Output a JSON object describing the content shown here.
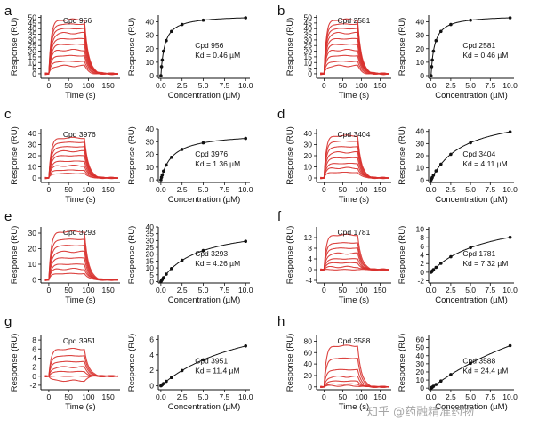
{
  "chart_data": [
    {
      "panel": "a",
      "compound": "Cpd 956",
      "kd_text": "Kd = 0.46 µM",
      "kd": 0.46,
      "rmax": 45,
      "sensorgram": {
        "type": "line",
        "xlabel": "Time (s)",
        "ylabel": "Response (RU)",
        "xlim": [
          -20,
          180
        ],
        "ylim": [
          -4,
          52
        ],
        "xticks": [
          0,
          50,
          100,
          150
        ],
        "yticks": [
          0,
          5,
          10,
          15,
          20,
          25,
          30,
          35,
          40,
          45,
          50
        ],
        "max_levels": [
          48,
          44,
          40,
          36,
          31,
          26,
          21,
          16,
          11,
          7
        ]
      },
      "affinity": {
        "type": "scatter",
        "xlabel": "Concentration (µM)",
        "ylabel": "Response (RU)",
        "xlim": [
          -0.3,
          10.5
        ],
        "ylim": [
          -2,
          45
        ],
        "xticks": [
          0.0,
          2.5,
          5.0,
          7.5,
          10.0
        ],
        "yticks": [
          0,
          10,
          20,
          30,
          40
        ]
      }
    },
    {
      "panel": "b",
      "compound": "Cpd 2581",
      "kd_text": "Kd = 0.46 µM",
      "kd": 0.46,
      "rmax": 45,
      "sensorgram": {
        "type": "line",
        "xlabel": "Time (s)",
        "ylabel": "Response (RU)",
        "xlim": [
          -20,
          180
        ],
        "ylim": [
          -4,
          52
        ],
        "xticks": [
          0,
          50,
          100,
          150
        ],
        "yticks": [
          0,
          5,
          10,
          15,
          20,
          25,
          30,
          35,
          40,
          45,
          50
        ],
        "max_levels": [
          48,
          44,
          40,
          36,
          31,
          26,
          21,
          16,
          11,
          7
        ]
      },
      "affinity": {
        "type": "scatter",
        "xlabel": "Concentration (µM)",
        "ylabel": "Response (RU)",
        "xlim": [
          -0.3,
          10.5
        ],
        "ylim": [
          -2,
          45
        ],
        "xticks": [
          0.0,
          2.5,
          5.0,
          7.5,
          10.0
        ],
        "yticks": [
          0,
          10,
          20,
          30,
          40
        ]
      }
    },
    {
      "panel": "c",
      "compound": "Cpd 3976",
      "kd_text": "Kd = 1.36 µM",
      "kd": 1.36,
      "rmax": 37,
      "sensorgram": {
        "type": "line",
        "xlabel": "Time (s)",
        "ylabel": "Response (RU)",
        "xlim": [
          -20,
          180
        ],
        "ylim": [
          -4,
          44
        ],
        "xticks": [
          0,
          50,
          100,
          150
        ],
        "yticks": [
          0,
          10,
          20,
          30,
          40
        ],
        "max_levels": [
          36,
          32,
          28,
          24,
          20,
          15,
          11,
          7,
          4
        ]
      },
      "affinity": {
        "type": "scatter",
        "xlabel": "Concentration (µM)",
        "ylabel": "Response (RU)",
        "xlim": [
          -0.3,
          10.5
        ],
        "ylim": [
          -2,
          40
        ],
        "xticks": [
          0.0,
          2.5,
          5.0,
          7.5,
          10.0
        ],
        "yticks": [
          0,
          10,
          20,
          30,
          40
        ]
      }
    },
    {
      "panel": "d",
      "compound": "Cpd 3404",
      "kd_text": "Kd = 4.11 µM",
      "kd": 4.11,
      "rmax": 56,
      "sensorgram": {
        "type": "line",
        "xlabel": "Time (s)",
        "ylabel": "Response (RU)",
        "xlim": [
          -20,
          180
        ],
        "ylim": [
          -4,
          44
        ],
        "xticks": [
          0,
          50,
          100,
          150
        ],
        "yticks": [
          0,
          10,
          20,
          30,
          40
        ],
        "max_levels": [
          38,
          33,
          28,
          23,
          18,
          13,
          9,
          5
        ]
      },
      "affinity": {
        "type": "scatter",
        "xlabel": "Concentration (µM)",
        "ylabel": "Response (RU)",
        "xlim": [
          -0.3,
          10.5
        ],
        "ylim": [
          -2,
          42
        ],
        "xticks": [
          0.0,
          2.5,
          5.0,
          7.5,
          10.0
        ],
        "yticks": [
          0,
          10,
          20,
          30,
          40
        ]
      }
    },
    {
      "panel": "e",
      "compound": "Cpd 3293",
      "kd_text": "Kd = 4.26 µM",
      "kd": 4.26,
      "rmax": 42,
      "sensorgram": {
        "type": "line",
        "xlabel": "Time (s)",
        "ylabel": "Response (RU)",
        "xlim": [
          -20,
          180
        ],
        "ylim": [
          -2,
          34
        ],
        "xticks": [
          0,
          50,
          100,
          150
        ],
        "yticks": [
          0,
          10,
          20,
          30
        ],
        "max_levels": [
          31,
          26,
          22,
          18,
          14,
          10,
          7,
          4
        ]
      },
      "affinity": {
        "type": "scatter",
        "xlabel": "Concentration (µM)",
        "ylabel": "Response (RU)",
        "xlim": [
          -0.3,
          10.5
        ],
        "ylim": [
          -1,
          40
        ],
        "xticks": [
          0.0,
          2.5,
          5.0,
          7.5,
          10.0
        ],
        "yticks": [
          0,
          5,
          10,
          15,
          20,
          25,
          30,
          35,
          40
        ]
      }
    },
    {
      "panel": "f",
      "compound": "Cpd 1781",
      "kd_text": "Kd = 7.32 µM",
      "kd": 7.32,
      "rmax": 14,
      "sensorgram": {
        "type": "line",
        "xlabel": "Time (s)",
        "ylabel": "Response (RU)",
        "xlim": [
          -20,
          180
        ],
        "ylim": [
          -5,
          16
        ],
        "xticks": [
          0,
          50,
          100,
          150
        ],
        "yticks": [
          -4,
          0,
          4,
          8,
          12
        ],
        "max_levels": [
          13,
          10,
          8,
          6,
          4,
          2.5,
          1,
          0
        ]
      },
      "affinity": {
        "type": "scatter",
        "xlabel": "Concentration (µM)",
        "ylabel": "Response (RU)",
        "xlim": [
          -0.3,
          10.5
        ],
        "ylim": [
          -2.5,
          10.5
        ],
        "xticks": [
          0.0,
          2.5,
          5.0,
          7.5,
          10.0
        ],
        "yticks": [
          -2,
          0,
          2,
          4,
          6,
          8,
          10
        ]
      }
    },
    {
      "panel": "g",
      "compound": "Cpd 3951",
      "kd_text": "Kd = 11.4 µM",
      "kd": 11.4,
      "rmax": 11,
      "sensorgram": {
        "type": "line",
        "xlabel": "Time (s)",
        "ylabel": "Response (RU)",
        "xlim": [
          -20,
          180
        ],
        "ylim": [
          -3,
          9
        ],
        "xticks": [
          0,
          50,
          100,
          150
        ],
        "yticks": [
          -2,
          0,
          2,
          4,
          6,
          8
        ],
        "max_levels": [
          6,
          4.5,
          3.2,
          2,
          1,
          0,
          -1
        ]
      },
      "affinity": {
        "type": "scatter",
        "xlabel": "Concentration (µM)",
        "ylabel": "Response (RU)",
        "xlim": [
          -0.3,
          10.5
        ],
        "ylim": [
          -0.5,
          6.5
        ],
        "xticks": [
          0.0,
          2.5,
          5.0,
          7.5,
          10.0
        ],
        "yticks": [
          0,
          2,
          4,
          6
        ]
      }
    },
    {
      "panel": "h",
      "compound": "Cpd 3588",
      "kd_text": "Kd = 24.4 µM",
      "kd": 24.4,
      "rmax": 180,
      "sensorgram": {
        "type": "line",
        "xlabel": "Time (s)",
        "ylabel": "Response (RU)",
        "xlim": [
          -20,
          180
        ],
        "ylim": [
          -5,
          90
        ],
        "xticks": [
          0,
          50,
          100,
          150
        ],
        "yticks": [
          0,
          20,
          40,
          60,
          80
        ],
        "max_levels": [
          72,
          50,
          30,
          18,
          10,
          5,
          2
        ]
      },
      "affinity": {
        "type": "scatter",
        "xlabel": "Concentration (µM)",
        "ylabel": "Response (RU)",
        "xlim": [
          -0.3,
          10.5
        ],
        "ylim": [
          -2,
          65
        ],
        "xticks": [
          0.0,
          2.5,
          5.0,
          7.5,
          10.0
        ],
        "yticks": [
          0,
          10,
          20,
          30,
          40,
          50,
          60
        ]
      }
    }
  ],
  "concentrations": [
    0.08,
    0.16,
    0.31,
    0.63,
    1.25,
    2.5,
    5,
    10
  ],
  "watermark": "知乎 @药融精准药物",
  "colors": {
    "sensorgram": "#d8302c",
    "fit": "#111111",
    "points": "#111111"
  }
}
